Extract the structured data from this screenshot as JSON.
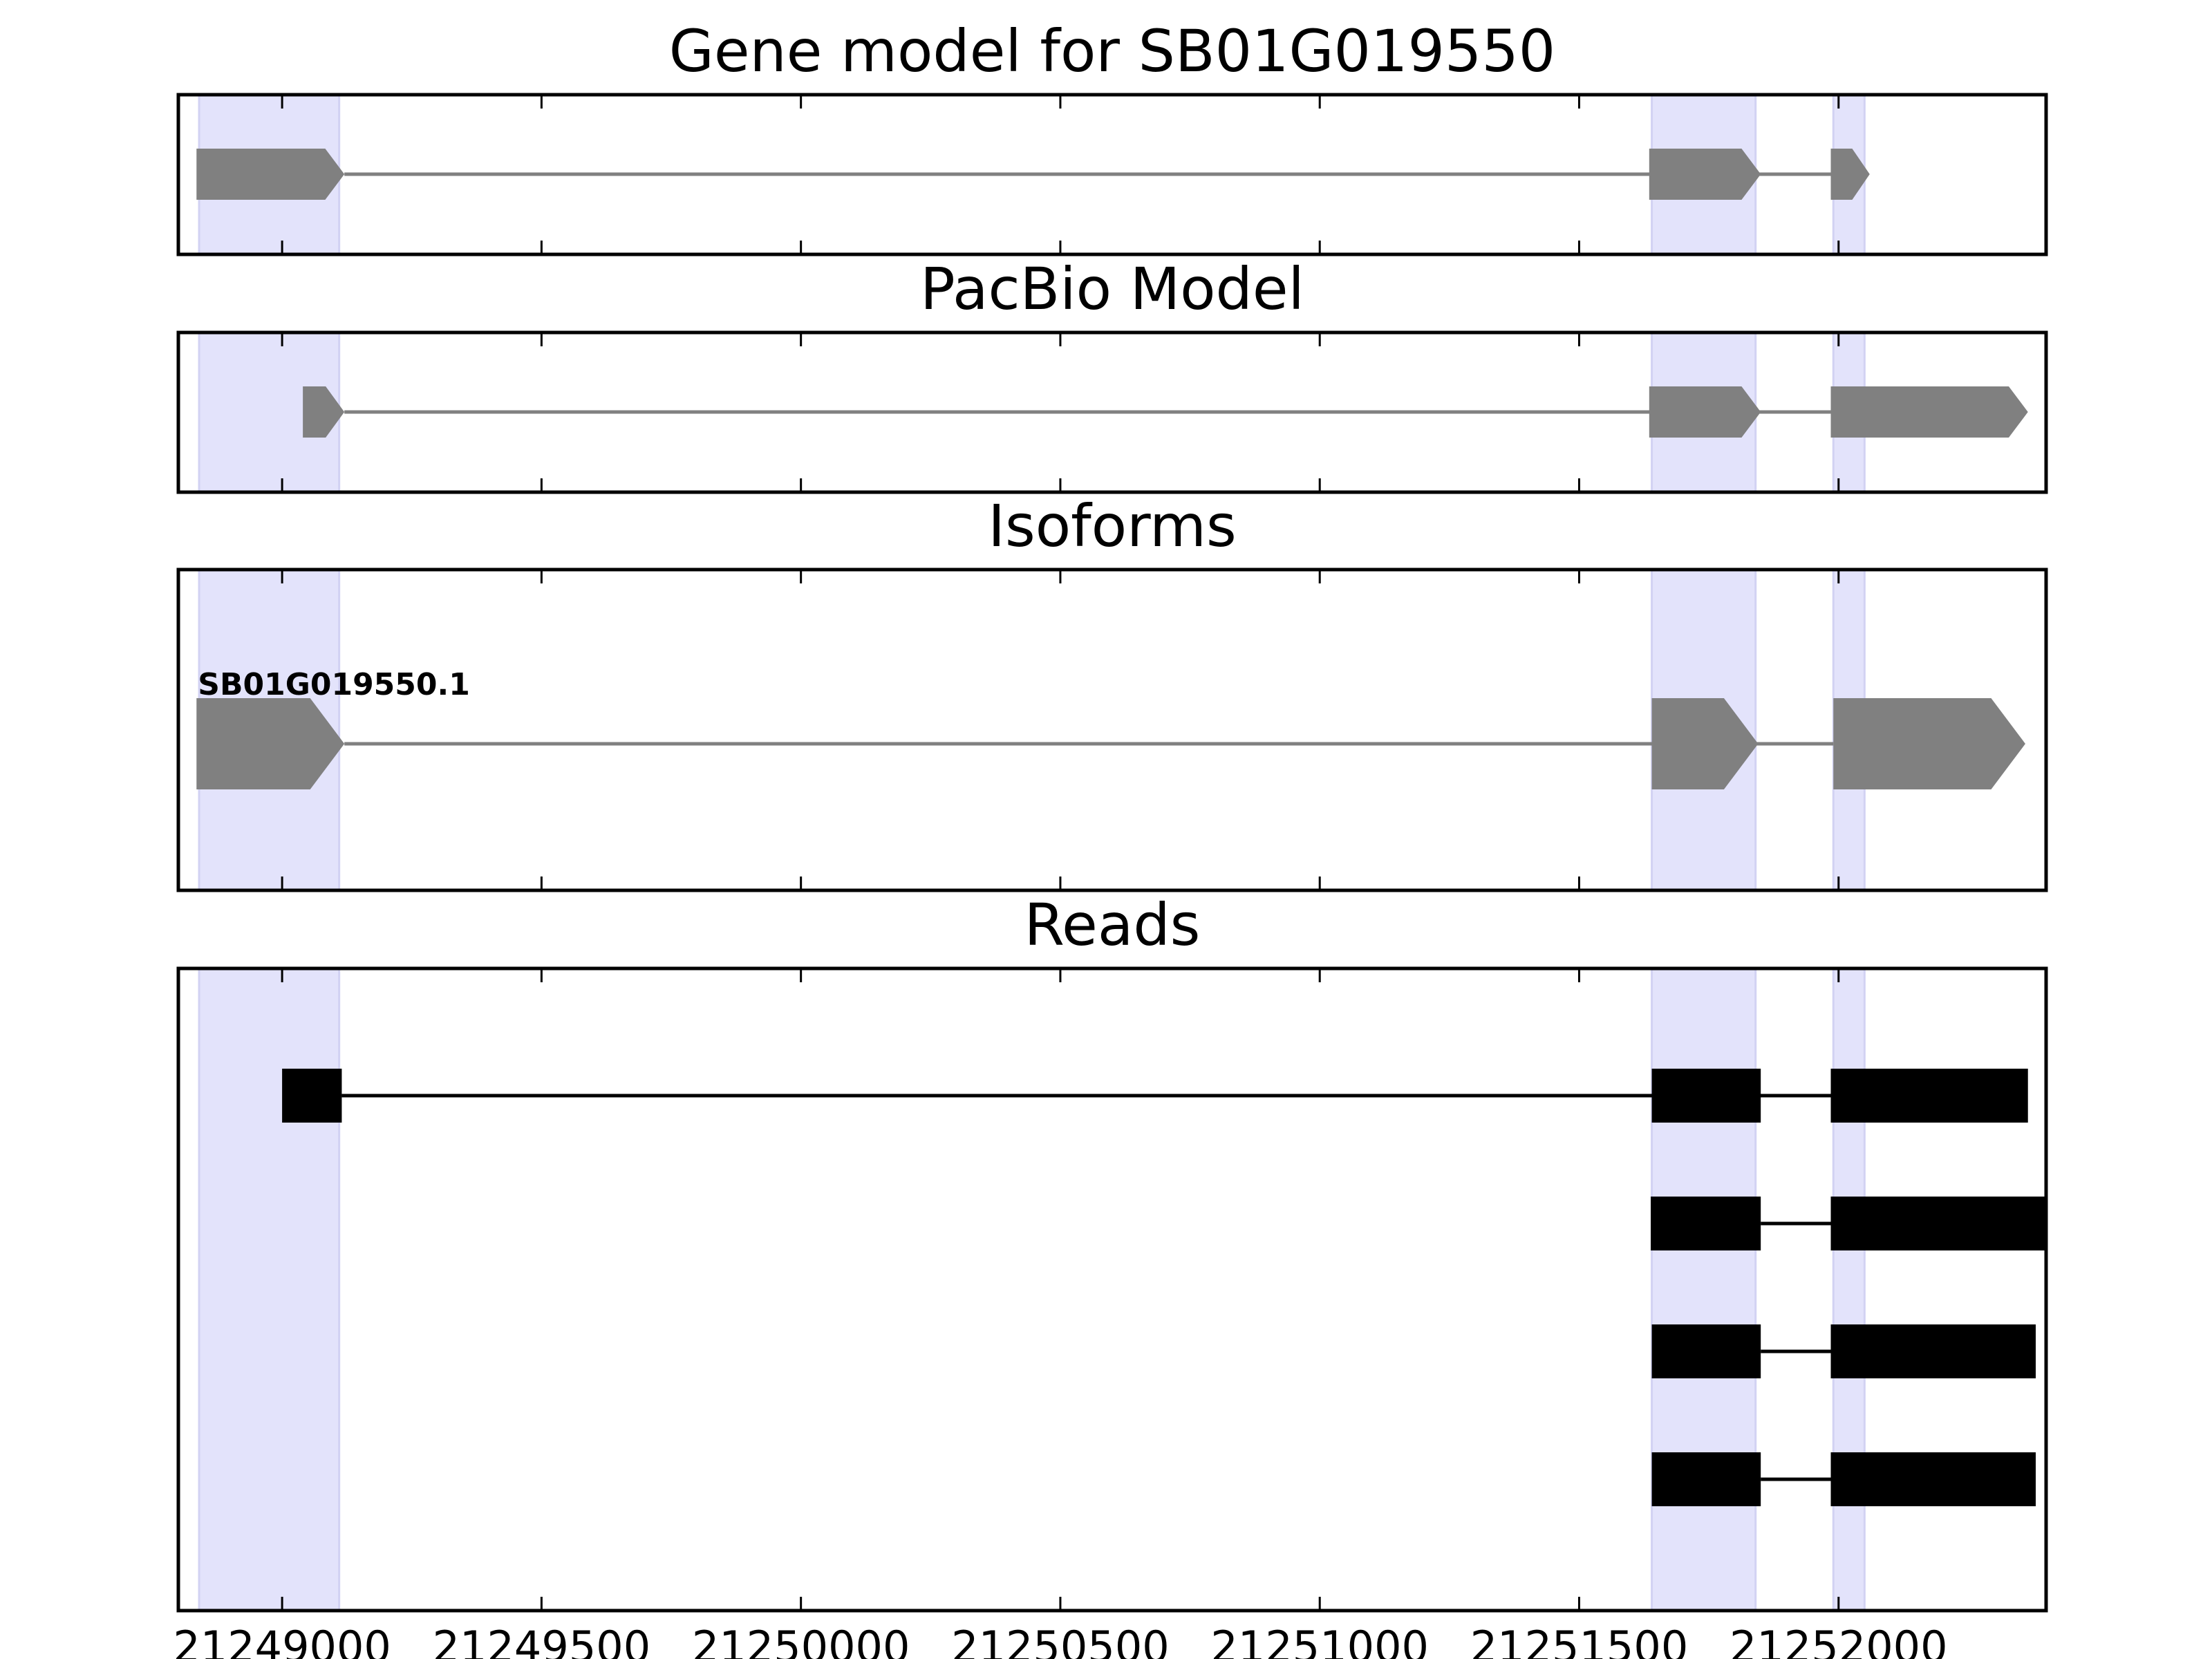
{
  "chart_data": {
    "type": "gene-model",
    "x_range": [
      21248800,
      21252400
    ],
    "x_ticks": [
      21249000,
      21249500,
      21250000,
      21250500,
      21251000,
      21251500,
      21252000
    ],
    "x_tick_labels": [
      "21249000",
      "21249500",
      "21250000",
      "21250500",
      "21251000",
      "21251500",
      "21252000"
    ],
    "highlight_color": "#e3e3fb",
    "highlights": [
      [
        21248840,
        21249110
      ],
      [
        21251640,
        21251840
      ],
      [
        21251990,
        21252050
      ]
    ],
    "panels": [
      {
        "id": "gene-model",
        "title": "Gene model for SB01G019550",
        "feature_color": "#808080",
        "tracks": [
          {
            "label": "",
            "strand": "+",
            "exons": [
              [
                21248835,
                21249120
              ],
              [
                21251635,
                21251850
              ],
              [
                21251985,
                21252060
              ]
            ]
          }
        ]
      },
      {
        "id": "pacbio-model",
        "title": "PacBio Model",
        "feature_color": "#808080",
        "tracks": [
          {
            "label": "",
            "strand": "+",
            "exons": [
              [
                21249040,
                21249120
              ],
              [
                21251635,
                21251850
              ],
              [
                21251985,
                21252365
              ]
            ]
          }
        ]
      },
      {
        "id": "isoforms",
        "title": "Isoforms",
        "feature_color": "#808080",
        "tracks": [
          {
            "label": "SB01G019550.1",
            "strand": "+",
            "exons": [
              [
                21248835,
                21249120
              ],
              [
                21251640,
                21251845
              ],
              [
                21251990,
                21252360
              ]
            ]
          }
        ]
      },
      {
        "id": "reads",
        "title": "Reads",
        "feature_color": "#000000",
        "tracks": [
          {
            "label": "",
            "strand": "",
            "exons": [
              [
                21249000,
                21249115
              ],
              [
                21251640,
                21251850
              ],
              [
                21251985,
                21252365
              ]
            ]
          },
          {
            "label": "",
            "strand": "",
            "exons": [
              [
                21251638,
                21251850
              ],
              [
                21251985,
                21252400
              ]
            ]
          },
          {
            "label": "",
            "strand": "",
            "exons": [
              [
                21251640,
                21251850
              ],
              [
                21251985,
                21252380
              ]
            ]
          },
          {
            "label": "",
            "strand": "",
            "exons": [
              [
                21251640,
                21251850
              ],
              [
                21251985,
                21252380
              ]
            ]
          }
        ]
      }
    ]
  }
}
